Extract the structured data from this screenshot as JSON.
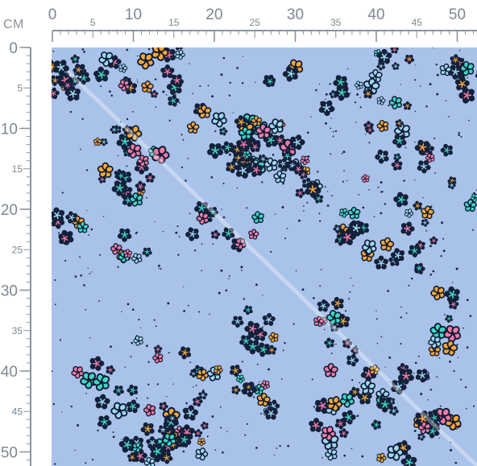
{
  "ruler": {
    "unit": "CM",
    "top_major_labels": [
      "0",
      "10",
      "20",
      "30",
      "40",
      "50"
    ],
    "top_minor_labels": [
      "5",
      "15",
      "25",
      "35",
      "45"
    ],
    "left_major_labels": [
      "0",
      "10",
      "20",
      "30",
      "40",
      "50"
    ],
    "left_minor_labels": [
      "5",
      "15",
      "25",
      "35",
      "45"
    ],
    "line_color": "#8a939c"
  },
  "fabric": {
    "background_color": "#a9c2ea",
    "pattern": "leopard-spot-flowers",
    "colors": {
      "petal": "#14213a",
      "outline": "#0e1a30",
      "accent_pink": "#f07aa8",
      "accent_orange": "#f5a63a",
      "accent_teal": "#3fd6c6",
      "accent_light_blue": "#9fd6f2",
      "dot": "#1a2540",
      "glare": "#ffffff"
    }
  }
}
